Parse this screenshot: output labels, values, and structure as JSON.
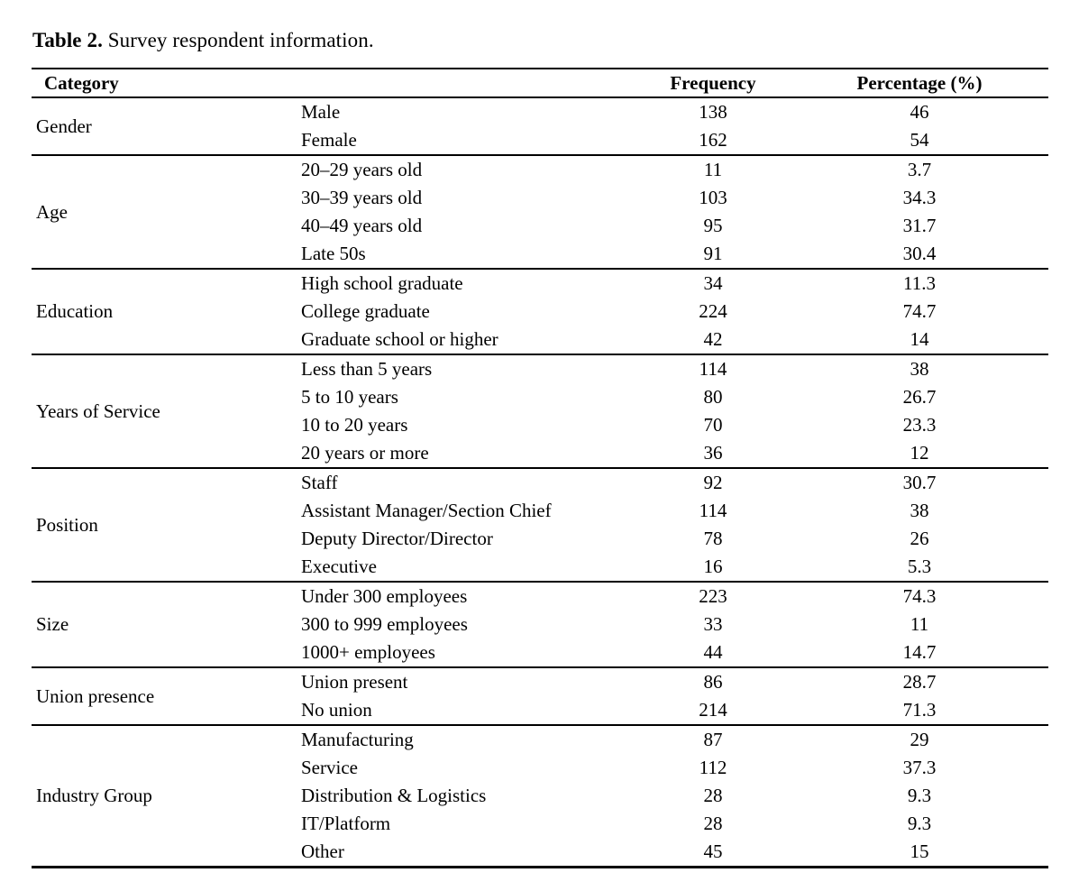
{
  "caption": {
    "bold": "Table 2.",
    "rest": " Survey respondent information."
  },
  "table": {
    "headers": [
      "Category",
      "Frequency",
      "Percentage (%)"
    ],
    "groups": [
      {
        "category": "Gender",
        "rows": [
          {
            "label": "Male",
            "frequency": "138",
            "percentage": "46"
          },
          {
            "label": "Female",
            "frequency": "162",
            "percentage": "54"
          }
        ]
      },
      {
        "category": "Age",
        "rows": [
          {
            "label": "20–29 years old",
            "frequency": "11",
            "percentage": "3.7"
          },
          {
            "label": "30–39 years old",
            "frequency": "103",
            "percentage": "34.3"
          },
          {
            "label": "40–49 years old",
            "frequency": "95",
            "percentage": "31.7"
          },
          {
            "label": "Late 50s",
            "frequency": "91",
            "percentage": "30.4"
          }
        ]
      },
      {
        "category": "Education",
        "rows": [
          {
            "label": "High school graduate",
            "frequency": "34",
            "percentage": "11.3"
          },
          {
            "label": "College graduate",
            "frequency": "224",
            "percentage": "74.7"
          },
          {
            "label": "Graduate school or higher",
            "frequency": "42",
            "percentage": "14"
          }
        ]
      },
      {
        "category": "Years of Service",
        "rows": [
          {
            "label": "Less than 5 years",
            "frequency": "114",
            "percentage": "38"
          },
          {
            "label": "5 to 10 years",
            "frequency": "80",
            "percentage": "26.7"
          },
          {
            "label": "10 to 20 years",
            "frequency": "70",
            "percentage": "23.3"
          },
          {
            "label": "20 years or more",
            "frequency": "36",
            "percentage": "12"
          }
        ]
      },
      {
        "category": "Position",
        "rows": [
          {
            "label": "Staff",
            "frequency": "92",
            "percentage": "30.7"
          },
          {
            "label": "Assistant Manager/Section Chief",
            "frequency": "114",
            "percentage": "38"
          },
          {
            "label": "Deputy Director/Director",
            "frequency": "78",
            "percentage": "26"
          },
          {
            "label": "Executive",
            "frequency": "16",
            "percentage": "5.3"
          }
        ]
      },
      {
        "category": "Size",
        "rows": [
          {
            "label": "Under 300 employees",
            "frequency": "223",
            "percentage": "74.3"
          },
          {
            "label": "300 to 999 employees",
            "frequency": "33",
            "percentage": "11"
          },
          {
            "label": "1000+ employees",
            "frequency": "44",
            "percentage": "14.7"
          }
        ]
      },
      {
        "category": "Union presence",
        "rows": [
          {
            "label": "Union present",
            "frequency": "86",
            "percentage": "28.7"
          },
          {
            "label": "No union",
            "frequency": "214",
            "percentage": "71.3"
          }
        ]
      },
      {
        "category": "Industry Group",
        "rows": [
          {
            "label": "Manufacturing",
            "frequency": "87",
            "percentage": "29"
          },
          {
            "label": "Service",
            "frequency": "112",
            "percentage": "37.3"
          },
          {
            "label": "Distribution & Logistics",
            "frequency": "28",
            "percentage": "9.3"
          },
          {
            "label": "IT/Platform",
            "frequency": "28",
            "percentage": "9.3"
          },
          {
            "label": "Other",
            "frequency": "45",
            "percentage": "15"
          }
        ]
      }
    ]
  }
}
